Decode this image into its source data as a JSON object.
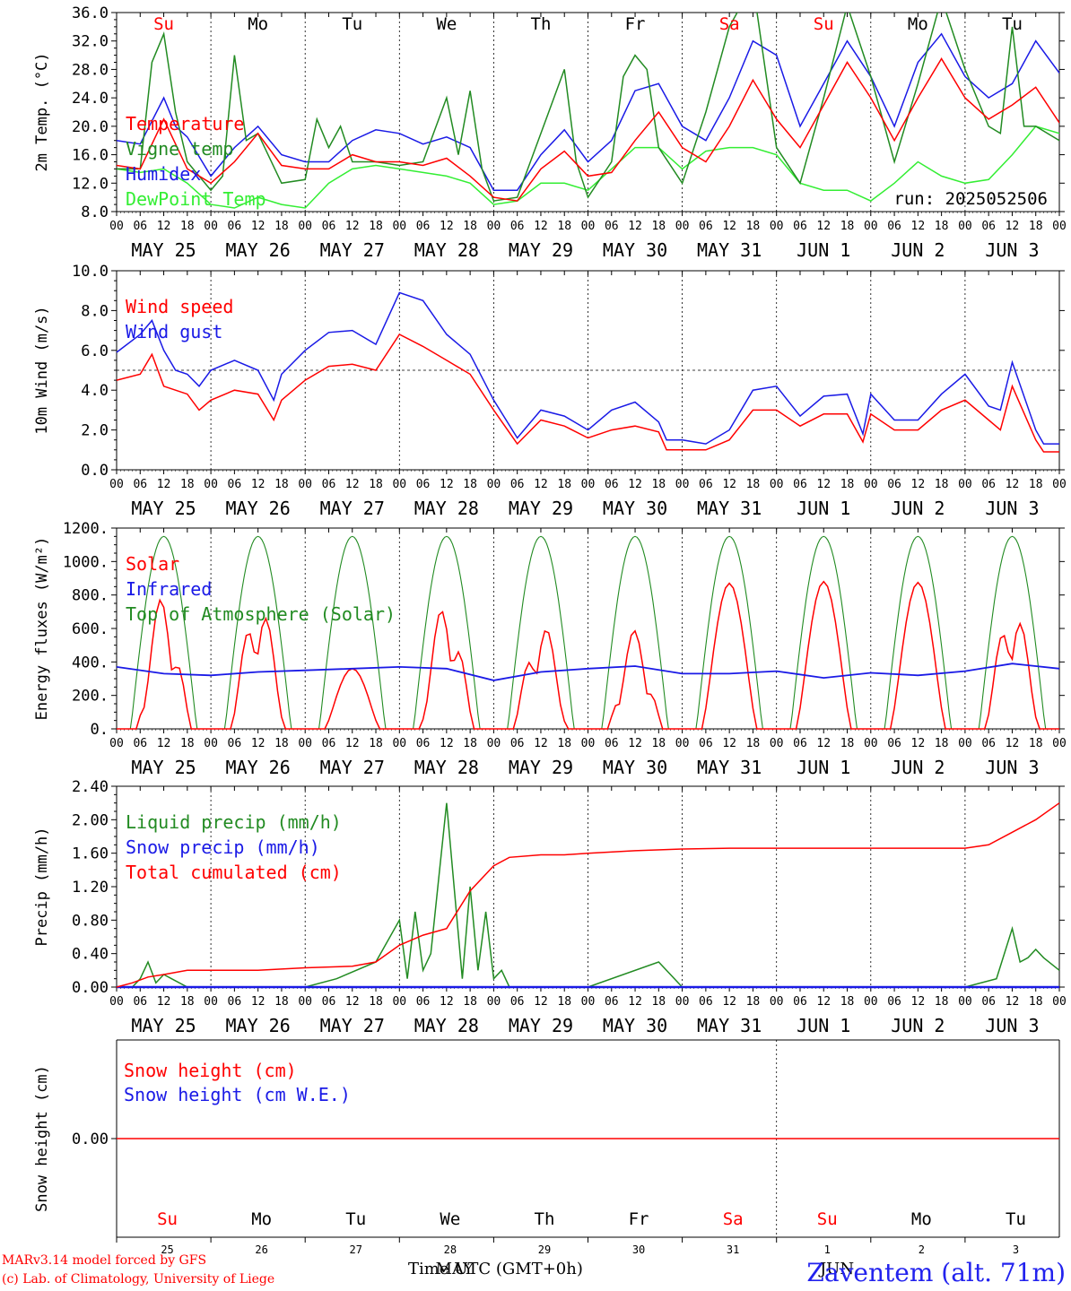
{
  "footer": {
    "model": "MARv3.14 model forced by GFS",
    "lab": "(c) Lab. of Climatology, University of Liege",
    "xlabel": "Time UTC (GMT+0h)",
    "month_label": "MAY",
    "month_label_2": "JUN",
    "station": "Zaventem (alt. 71m)"
  },
  "colors": {
    "temperature": "#ff0000",
    "vigne": "#228b22",
    "humidex": "#1a1ae6",
    "dewpoint": "#33ee33",
    "weekend": "#ff0000",
    "weekday": "#000000"
  },
  "chart_data": [
    {
      "type": "line",
      "ylabel": "2m Temp. (°C)",
      "ylim": [
        8,
        36
      ],
      "yticks": [
        "8.0",
        "12.0",
        "16.0",
        "20.0",
        "24.0",
        "28.0",
        "32.0",
        "36.0"
      ],
      "annotation": "run: 2025052506",
      "days_top": [
        "Su",
        "Mo",
        "Tu",
        "We",
        "Th",
        "Fr",
        "Sa",
        "Su",
        "Mo",
        "Tu"
      ],
      "weekend_flags": [
        true,
        false,
        false,
        false,
        false,
        false,
        true,
        true,
        false,
        false
      ],
      "date_labels": [
        "MAY 25",
        "MAY 26",
        "MAY 27",
        "MAY 28",
        "MAY 29",
        "MAY 30",
        "MAY 31",
        "JUN  1",
        "JUN  2",
        "JUN  3"
      ],
      "x_hour_ticks": [
        "00",
        "06",
        "12",
        "18"
      ],
      "series": [
        {
          "name": "Temperature",
          "color": "#ff0000",
          "x": [
            0,
            6,
            12,
            18,
            24,
            30,
            36,
            42,
            48,
            54,
            60,
            66,
            72,
            78,
            84,
            90,
            96,
            102,
            108,
            114,
            120,
            126,
            132,
            138,
            144,
            150,
            156,
            162,
            168,
            174,
            180,
            186,
            192,
            198,
            204,
            210,
            216,
            222,
            228,
            234,
            240
          ],
          "values": [
            14.5,
            14,
            21,
            14,
            12,
            15,
            19,
            14.5,
            14,
            14,
            16,
            15,
            15,
            14.5,
            15.5,
            13,
            10,
            9.5,
            14,
            16.5,
            13,
            13.5,
            18,
            22,
            17,
            15,
            20,
            26.5,
            21,
            17,
            23,
            29,
            24,
            18,
            24,
            29.5,
            24,
            21,
            23,
            25.5,
            20.5
          ]
        },
        {
          "name": "Vigne temp",
          "color": "#228b22",
          "x": [
            0,
            6,
            9,
            12,
            15,
            18,
            24,
            27,
            30,
            33,
            36,
            42,
            48,
            51,
            54,
            57,
            60,
            66,
            72,
            78,
            84,
            87,
            90,
            93,
            96,
            102,
            108,
            114,
            117,
            120,
            126,
            129,
            132,
            135,
            138,
            144,
            150,
            156,
            162,
            168,
            174,
            180,
            186,
            192,
            198,
            204,
            210,
            216,
            222,
            225,
            228,
            231,
            234,
            240
          ],
          "values": [
            14,
            14,
            29,
            33,
            22,
            15,
            11,
            13,
            30,
            18,
            19,
            12,
            12.5,
            21,
            17,
            20,
            15,
            15,
            14.5,
            15,
            24,
            16,
            25,
            14,
            9.5,
            10,
            19,
            28,
            15,
            10,
            15,
            27,
            30,
            28,
            17,
            12,
            22,
            34,
            40,
            17,
            12,
            24,
            37,
            27,
            15,
            26,
            38,
            28,
            20,
            19,
            34,
            20,
            20,
            18
          ]
        },
        {
          "name": "Humidex",
          "color": "#1a1ae6",
          "x": [
            0,
            6,
            12,
            15,
            18,
            24,
            30,
            36,
            42,
            48,
            54,
            60,
            66,
            72,
            78,
            84,
            90,
            96,
            102,
            108,
            114,
            120,
            126,
            132,
            138,
            144,
            150,
            156,
            162,
            168,
            174,
            180,
            186,
            192,
            198,
            204,
            210,
            216,
            222,
            228,
            234,
            240
          ],
          "values": [
            18,
            17.5,
            24,
            20,
            18.5,
            13,
            17,
            20,
            16,
            15,
            15,
            18,
            19.5,
            19,
            17.5,
            18.5,
            17,
            11,
            11,
            16,
            19.5,
            15,
            18,
            25,
            26,
            20,
            18,
            24,
            32,
            30,
            20,
            26,
            32,
            27,
            20,
            29,
            33,
            27,
            24,
            26,
            32,
            27.5
          ]
        },
        {
          "name": "DewPoint Temp",
          "color": "#33ee33",
          "x": [
            0,
            6,
            12,
            18,
            24,
            30,
            36,
            42,
            48,
            54,
            60,
            66,
            72,
            78,
            84,
            90,
            96,
            102,
            108,
            114,
            120,
            126,
            132,
            138,
            144,
            150,
            156,
            162,
            168,
            174,
            180,
            186,
            192,
            198,
            204,
            210,
            216,
            222,
            228,
            234,
            240
          ],
          "values": [
            14,
            13.5,
            14,
            12,
            9,
            8.5,
            10,
            9,
            8.5,
            12,
            14,
            14.5,
            14,
            13.5,
            13,
            12,
            9,
            9.5,
            12,
            12,
            11,
            14,
            17,
            17,
            14,
            16.5,
            17,
            17,
            16,
            12,
            11,
            11,
            9.5,
            12,
            15,
            13,
            12,
            12.5,
            16,
            20,
            19
          ]
        }
      ]
    },
    {
      "type": "line",
      "ylabel": "10m Wind (m/s)",
      "ylim": [
        0,
        10
      ],
      "yticks": [
        "0.0",
        "2.0",
        "4.0",
        "6.0",
        "8.0",
        "10.0"
      ],
      "date_labels": [
        "MAY 25",
        "MAY 26",
        "MAY 27",
        "MAY 28",
        "MAY 29",
        "MAY 30",
        "MAY 31",
        "JUN  1",
        "JUN  2",
        "JUN  3"
      ],
      "x_hour_ticks": [
        "00",
        "06",
        "12",
        "18"
      ],
      "reference_line": 5.0,
      "series": [
        {
          "name": "Wind speed",
          "color": "#ff0000",
          "x": [
            0,
            6,
            9,
            12,
            15,
            18,
            21,
            24,
            30,
            36,
            40,
            42,
            48,
            54,
            60,
            66,
            72,
            78,
            84,
            90,
            96,
            102,
            108,
            114,
            120,
            126,
            132,
            138,
            140,
            144,
            150,
            156,
            162,
            168,
            174,
            180,
            186,
            190,
            192,
            198,
            204,
            210,
            216,
            222,
            225,
            228,
            234,
            236,
            240
          ],
          "values": [
            4.5,
            4.8,
            5.8,
            4.2,
            4.0,
            3.8,
            3.0,
            3.5,
            4.0,
            3.8,
            2.5,
            3.5,
            4.5,
            5.2,
            5.3,
            5.0,
            6.8,
            6.2,
            5.5,
            4.8,
            3.0,
            1.3,
            2.5,
            2.2,
            1.6,
            2.0,
            2.2,
            1.9,
            1.0,
            1.0,
            1.0,
            1.5,
            3.0,
            3.0,
            2.2,
            2.8,
            2.8,
            1.4,
            2.8,
            2.0,
            2.0,
            3.0,
            3.5,
            2.5,
            2.0,
            4.2,
            1.5,
            0.9,
            0.9
          ]
        },
        {
          "name": "Wind gust",
          "color": "#1a1ae6",
          "x": [
            0,
            6,
            9,
            12,
            15,
            18,
            21,
            24,
            30,
            36,
            40,
            42,
            48,
            54,
            60,
            66,
            72,
            78,
            84,
            90,
            96,
            102,
            108,
            114,
            120,
            126,
            132,
            138,
            140,
            144,
            150,
            156,
            162,
            168,
            174,
            180,
            186,
            190,
            192,
            198,
            204,
            210,
            216,
            222,
            225,
            228,
            234,
            236,
            240
          ],
          "values": [
            5.9,
            6.8,
            7.5,
            6.0,
            5.0,
            4.8,
            4.2,
            5.0,
            5.5,
            5.0,
            3.5,
            4.8,
            6.0,
            6.9,
            7.0,
            6.3,
            8.9,
            8.5,
            6.8,
            5.8,
            3.5,
            1.6,
            3.0,
            2.7,
            2.0,
            3.0,
            3.4,
            2.4,
            1.5,
            1.5,
            1.3,
            2.0,
            4.0,
            4.2,
            2.7,
            3.7,
            3.8,
            1.8,
            3.8,
            2.5,
            2.5,
            3.8,
            4.8,
            3.2,
            3.0,
            5.4,
            2.0,
            1.3,
            1.3
          ]
        }
      ]
    },
    {
      "type": "line",
      "ylabel": "Energy fluxes (W/m²)",
      "ylim": [
        0,
        1200
      ],
      "yticks": [
        "0.",
        "200.",
        "400.",
        "600.",
        "800.",
        "1000.",
        "1200."
      ],
      "date_labels": [
        "MAY 25",
        "MAY 26",
        "MAY 27",
        "MAY 28",
        "MAY 29",
        "MAY 30",
        "MAY 31",
        "JUN  1",
        "JUN  2",
        "JUN  3"
      ],
      "x_hour_ticks": [
        "00",
        "06",
        "12",
        "18"
      ],
      "daily_solar_peak": [
        800,
        810,
        360,
        780,
        660,
        590,
        870,
        880,
        875,
        780
      ],
      "series": [
        {
          "name": "Solar",
          "color": "#ff0000"
        },
        {
          "name": "Infrared",
          "color": "#1a1ae6",
          "x": [
            0,
            12,
            24,
            36,
            48,
            60,
            72,
            84,
            96,
            108,
            120,
            132,
            144,
            156,
            168,
            180,
            192,
            204,
            216,
            228,
            240
          ],
          "values": [
            370,
            330,
            320,
            340,
            350,
            360,
            370,
            360,
            290,
            340,
            360,
            375,
            330,
            330,
            345,
            305,
            335,
            320,
            345,
            390,
            360
          ]
        },
        {
          "name": "Top of Atmosphere (Solar)",
          "color": "#228b22",
          "peak": 1150
        }
      ]
    },
    {
      "type": "line",
      "ylabel": "Precip (mm/h)",
      "ylim": [
        0,
        2.4
      ],
      "yticks": [
        "0.00",
        "0.40",
        "0.80",
        "1.20",
        "1.60",
        "2.00",
        "2.40"
      ],
      "date_labels": [
        "MAY 25",
        "MAY 26",
        "MAY 27",
        "MAY 28",
        "MAY 29",
        "MAY 30",
        "MAY 31",
        "JUN  1",
        "JUN  2",
        "JUN  3"
      ],
      "x_hour_ticks": [
        "00",
        "06",
        "12",
        "18"
      ],
      "series": [
        {
          "name": "Liquid precip (mm/h)",
          "color": "#228b22",
          "x": [
            0,
            4,
            6,
            8,
            10,
            12,
            14,
            18,
            24,
            48,
            56,
            66,
            72,
            74,
            76,
            78,
            80,
            84,
            88,
            90,
            92,
            94,
            96,
            98,
            100,
            102,
            104,
            108,
            120,
            138,
            144,
            216,
            224,
            228,
            230,
            232,
            234,
            236,
            240
          ],
          "values": [
            0,
            0,
            0.1,
            0.3,
            0.05,
            0.15,
            0.1,
            0,
            0,
            0,
            0.1,
            0.3,
            0.8,
            0.1,
            0.9,
            0.2,
            0.4,
            2.2,
            0.1,
            1.2,
            0.2,
            0.9,
            0.1,
            0.2,
            0,
            0,
            0,
            0,
            0,
            0.3,
            0,
            0,
            0.1,
            0.7,
            0.3,
            0.35,
            0.45,
            0.35,
            0.2
          ]
        },
        {
          "name": "Snow precip (mm/h)",
          "color": "#1a1ae6",
          "x": [
            0,
            240
          ],
          "values": [
            0,
            0
          ]
        },
        {
          "name": "Total cumulated (cm)",
          "color": "#ff0000",
          "x": [
            0,
            4,
            8,
            12,
            18,
            24,
            36,
            48,
            60,
            66,
            72,
            78,
            84,
            90,
            96,
            100,
            108,
            114,
            120,
            132,
            144,
            156,
            168,
            180,
            192,
            204,
            216,
            222,
            228,
            234,
            240
          ],
          "values": [
            0,
            0.05,
            0.12,
            0.15,
            0.2,
            0.2,
            0.2,
            0.23,
            0.25,
            0.3,
            0.5,
            0.62,
            0.7,
            1.15,
            1.45,
            1.55,
            1.58,
            1.58,
            1.6,
            1.63,
            1.65,
            1.66,
            1.66,
            1.66,
            1.66,
            1.66,
            1.66,
            1.7,
            1.85,
            2.0,
            2.2
          ]
        }
      ]
    },
    {
      "type": "line",
      "ylabel": "Snow height (cm)",
      "yticks": [
        "0.00"
      ],
      "days_bottom": [
        "Su",
        "Mo",
        "Tu",
        "We",
        "Th",
        "Fr",
        "Sa",
        "Su",
        "Mo",
        "Tu"
      ],
      "weekend_flags": [
        true,
        false,
        false,
        false,
        false,
        false,
        true,
        true,
        false,
        false
      ],
      "day_numbers": [
        "25",
        "26",
        "27",
        "28",
        "29",
        "30",
        "31",
        "1",
        "2",
        "3"
      ],
      "series": [
        {
          "name": "Snow height (cm)",
          "color": "#ff0000",
          "x": [
            0,
            240
          ],
          "values": [
            0,
            0
          ]
        },
        {
          "name": "Snow height (cm W.E.)",
          "color": "#1a1ae6"
        }
      ]
    }
  ]
}
